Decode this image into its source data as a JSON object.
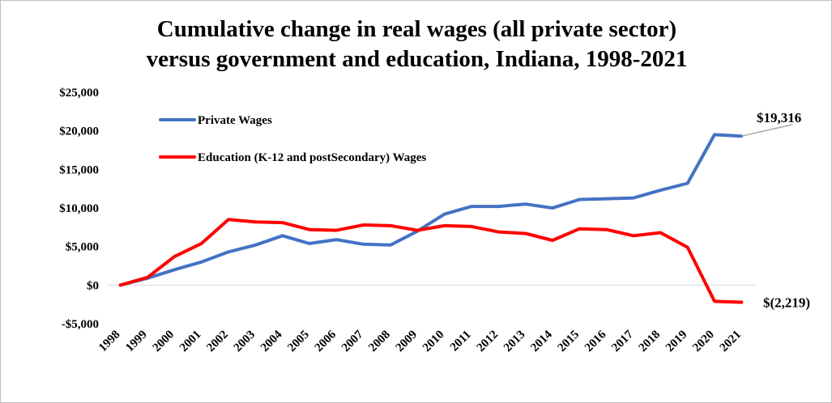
{
  "chart_data": {
    "type": "line",
    "title_lines": [
      "Cumulative change in real wages (all private sector)",
      "versus government and education, Indiana, 1998-2021"
    ],
    "categories": [
      "1998",
      "1999",
      "2000",
      "2001",
      "2002",
      "2003",
      "2004",
      "2005",
      "2006",
      "2007",
      "2008",
      "2009",
      "2010",
      "2011",
      "2012",
      "2013",
      "2014",
      "2015",
      "2016",
      "2017",
      "2018",
      "2019",
      "2020",
      "2021"
    ],
    "ylim": [
      -5000,
      25000
    ],
    "yticks": [
      -5000,
      0,
      5000,
      10000,
      15000,
      20000,
      25000
    ],
    "ytick_labels": [
      "-$5,000",
      "$0",
      "$5,000",
      "$10,000",
      "$15,000",
      "$20,000",
      "$25,000"
    ],
    "grid": false,
    "legend_position": "top-left",
    "series": [
      {
        "name": "Private Wages",
        "color": "#4472C4",
        "values": [
          0,
          900,
          2000,
          3000,
          4300,
          5200,
          6400,
          5400,
          5900,
          5300,
          5200,
          7000,
          9200,
          10200,
          10200,
          10500,
          10000,
          11100,
          11200,
          11300,
          12300,
          13200,
          19500,
          19316
        ]
      },
      {
        "name": "Education (K-12 and postSecondary) Wages",
        "color": "#FF0000",
        "values": [
          0,
          1000,
          3700,
          5400,
          8500,
          8200,
          8100,
          7200,
          7100,
          7800,
          7700,
          7100,
          7700,
          7600,
          6900,
          6700,
          5800,
          7300,
          7200,
          6400,
          6800,
          4900,
          -2100,
          -2219
        ]
      }
    ],
    "annotations": [
      {
        "text": "$19,316",
        "series": 0,
        "category": "2021"
      },
      {
        "text": "$(2,219)",
        "series": 1,
        "category": "2021"
      }
    ]
  }
}
